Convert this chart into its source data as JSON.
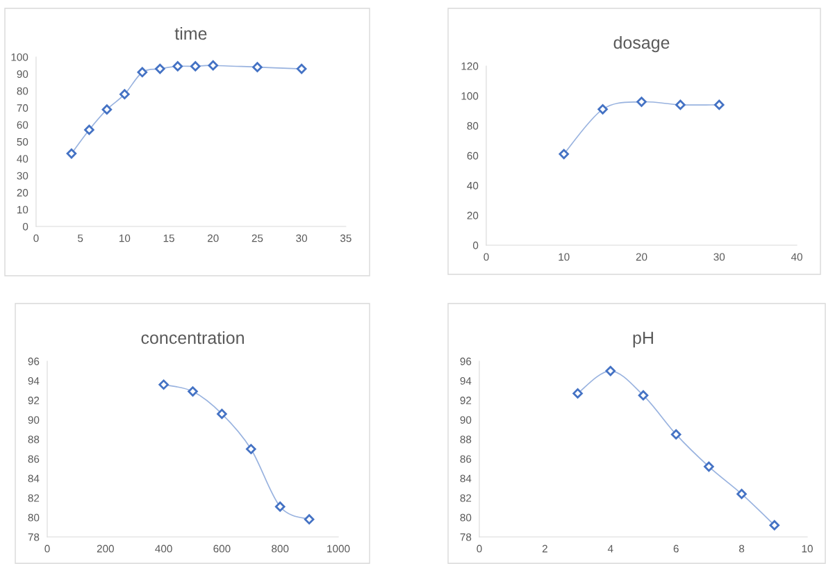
{
  "chart_data": [
    {
      "type": "line",
      "title": "time",
      "marker": "diamond",
      "x": [
        4,
        6,
        8,
        10,
        12,
        14,
        16,
        18,
        20,
        25,
        30
      ],
      "series": [
        {
          "color": "#4472c4",
          "values": [
            43,
            57,
            69,
            78,
            91,
            93,
            94.5,
            94.5,
            95,
            94,
            93
          ]
        }
      ],
      "xlim": [
        0,
        35
      ],
      "xticks": [
        0,
        5,
        10,
        15,
        20,
        25,
        30,
        35
      ],
      "ylim": [
        0,
        100
      ],
      "yticks": [
        0,
        10,
        20,
        30,
        40,
        50,
        60,
        70,
        80,
        90,
        100
      ]
    },
    {
      "type": "line",
      "title": "dosage",
      "marker": "diamond",
      "x": [
        10,
        15,
        20,
        25,
        30
      ],
      "series": [
        {
          "color": "#4472c4",
          "values": [
            61,
            91,
            96,
            94,
            94
          ]
        }
      ],
      "xlim": [
        0,
        40
      ],
      "xticks": [
        0,
        10,
        20,
        30,
        40
      ],
      "ylim": [
        0,
        120
      ],
      "yticks": [
        0,
        20,
        40,
        60,
        80,
        100,
        120
      ]
    },
    {
      "type": "line",
      "title": "concentration",
      "marker": "diamond",
      "x": [
        400,
        500,
        600,
        700,
        800,
        900
      ],
      "series": [
        {
          "color": "#4472c4",
          "values": [
            93.6,
            92.9,
            90.6,
            87.0,
            81.1,
            79.8
          ]
        }
      ],
      "xlim": [
        0,
        1000
      ],
      "xticks": [
        0,
        200,
        400,
        600,
        800,
        1000
      ],
      "ylim": [
        78,
        96
      ],
      "yticks": [
        78,
        80,
        82,
        84,
        86,
        88,
        90,
        92,
        94,
        96
      ]
    },
    {
      "type": "line",
      "title": "pH",
      "marker": "diamond",
      "x": [
        3,
        4,
        5,
        6,
        7,
        8,
        9
      ],
      "series": [
        {
          "color": "#4472c4",
          "values": [
            92.7,
            95.0,
            92.5,
            88.5,
            85.2,
            82.4,
            79.2
          ]
        }
      ],
      "xlim": [
        0,
        10
      ],
      "xticks": [
        0,
        2,
        4,
        6,
        8,
        10
      ],
      "ylim": [
        78,
        96
      ],
      "yticks": [
        78,
        80,
        82,
        84,
        86,
        88,
        90,
        92,
        94,
        96
      ]
    }
  ]
}
